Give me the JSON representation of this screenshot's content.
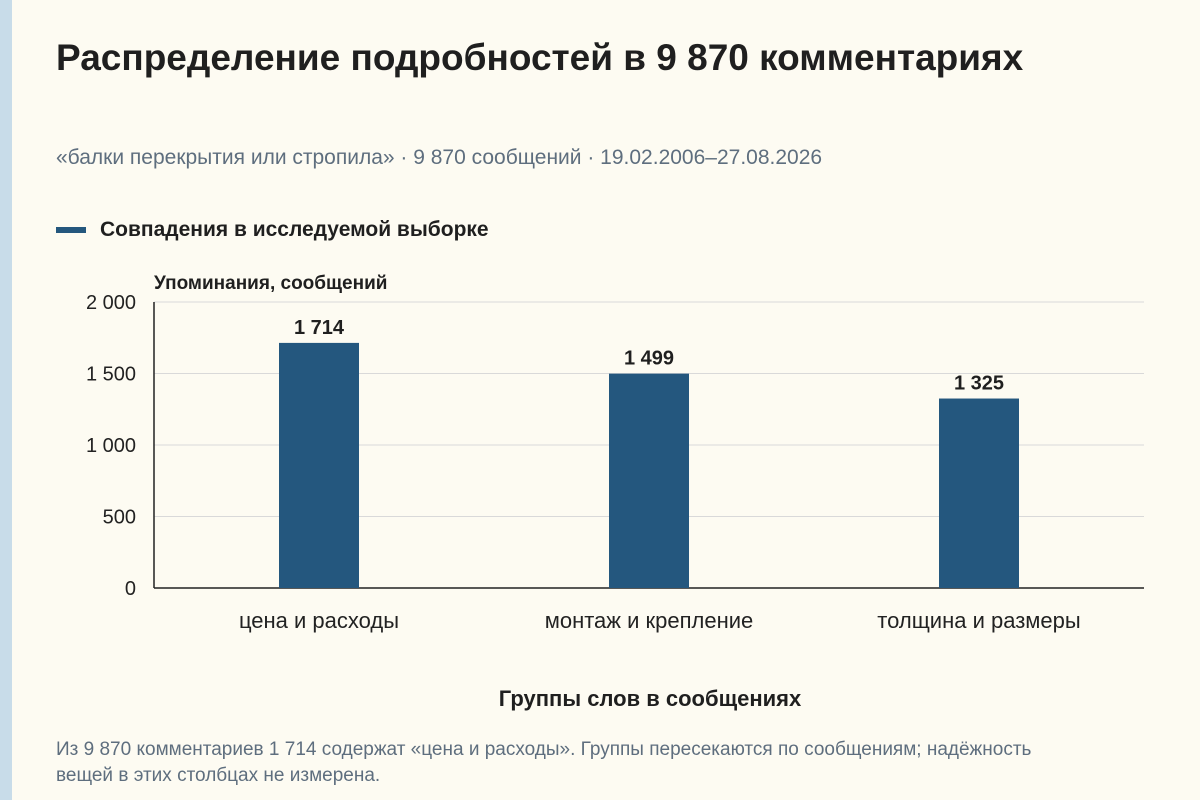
{
  "title": "Распределение подробностей в 9 870 комментариях",
  "subtitle": "«балки перекрытия или стропила» · 9 870 сообщений · 19.02.2006–27.08.2026",
  "footnote": "Из 9 870 комментариев 1 714 содержат «цена и расходы». Группы пересекаются по сообщениям; надёжность вещей в этих столбцах не измерена.",
  "colors": {
    "bar": "#24577e",
    "grid": "#d9d9d9",
    "axis": "#222222"
  },
  "chart_data": {
    "type": "bar",
    "categories": [
      "цена и расходы",
      "монтаж и крепление",
      "толщина и размеры"
    ],
    "series": [
      {
        "name": "Совпадения в исследуемой выборке",
        "values": [
          1714,
          1499,
          1325
        ],
        "labels": [
          "1 714",
          "1 499",
          "1 325"
        ]
      }
    ],
    "ylabel": "Упоминания, сообщений",
    "xlabel": "Группы слов в сообщениях",
    "ylim": [
      0,
      2000
    ],
    "yticks": [
      0,
      500,
      1000,
      1500,
      2000
    ],
    "ytick_labels": [
      "0",
      "500",
      "1 000",
      "1 500",
      "2 000"
    ],
    "grid": true,
    "legend_position": "top-left"
  }
}
